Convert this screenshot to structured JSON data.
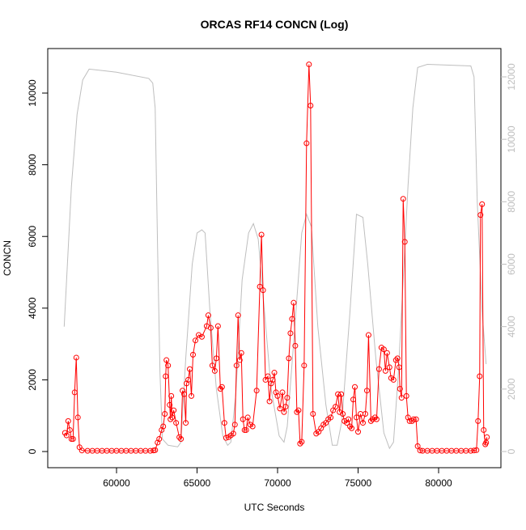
{
  "chart_data": {
    "type": "line",
    "title": "ORCAS RF14 CONCN (Log)",
    "x_label": "UTC Seconds",
    "y_label": "CONCN",
    "xlim": [
      55729,
      83869
    ],
    "xticks": [
      60000,
      65000,
      70000,
      75000,
      80000
    ],
    "ylim": [
      -451,
      11242
    ],
    "yticks": [
      0,
      2000,
      4000,
      6000,
      8000,
      10000
    ],
    "y2lim": [
      -518,
      12907
    ],
    "y2ticks": [
      0,
      2000,
      4000,
      6000,
      8000,
      10000,
      12000
    ],
    "series": [
      {
        "color": "#ff0000",
        "markers": true,
        "x": [
          56800,
          56900,
          57000,
          57100,
          57200,
          57300,
          57400,
          57500,
          57600,
          57700,
          57850,
          58200,
          58500,
          58800,
          59100,
          59400,
          59700,
          60000,
          60300,
          60600,
          60900,
          61200,
          61500,
          61800,
          62100,
          62300,
          62400,
          62550,
          62650,
          62800,
          62900,
          63000,
          63050,
          63100,
          63200,
          63300,
          63350,
          63400,
          63450,
          63550,
          63700,
          63900,
          64000,
          64100,
          64200,
          64300,
          64350,
          64450,
          64550,
          64650,
          64750,
          64900,
          65100,
          65300,
          65600,
          65700,
          65850,
          65950,
          66100,
          66200,
          66300,
          66450,
          66550,
          66700,
          66800,
          66950,
          67100,
          67250,
          67350,
          67450,
          67550,
          67650,
          67750,
          67850,
          67950,
          68050,
          68150,
          68300,
          68450,
          68700,
          68900,
          69000,
          69100,
          69250,
          69400,
          69500,
          69600,
          69700,
          69800,
          69900,
          70000,
          70150,
          70300,
          70400,
          70500,
          70600,
          70700,
          70800,
          70900,
          71000,
          71100,
          71200,
          71300,
          71400,
          71500,
          71650,
          71800,
          71950,
          72050,
          72200,
          72400,
          72550,
          72700,
          72850,
          73000,
          73150,
          73300,
          73450,
          73600,
          73750,
          73850,
          73950,
          74050,
          74150,
          74300,
          74400,
          74500,
          74600,
          74700,
          74800,
          74900,
          75000,
          75150,
          75300,
          75450,
          75550,
          75650,
          75800,
          75900,
          76050,
          76150,
          76300,
          76450,
          76600,
          76700,
          76800,
          76950,
          77050,
          77200,
          77350,
          77450,
          77550,
          77600,
          77700,
          77800,
          77900,
          78000,
          78100,
          78200,
          78350,
          78450,
          78600,
          78700,
          78850,
          79000,
          79300,
          79600,
          79900,
          80200,
          80500,
          80800,
          81100,
          81400,
          81700,
          82000,
          82200,
          82350,
          82450,
          82550,
          82600,
          82700,
          82800,
          82900,
          82950,
          83000
        ],
        "values": [
          520,
          450,
          850,
          600,
          350,
          350,
          1650,
          2620,
          950,
          120,
          30,
          20,
          20,
          20,
          20,
          20,
          20,
          20,
          20,
          20,
          20,
          20,
          20,
          20,
          20,
          30,
          40,
          250,
          350,
          600,
          700,
          1050,
          2100,
          2550,
          2400,
          1300,
          900,
          1550,
          950,
          1150,
          800,
          400,
          350,
          1700,
          1600,
          800,
          1900,
          2000,
          2300,
          1550,
          2700,
          3100,
          3250,
          3200,
          3500,
          3800,
          3450,
          2400,
          2250,
          2600,
          3500,
          1750,
          1800,
          800,
          380,
          400,
          450,
          500,
          750,
          2400,
          3800,
          2550,
          2750,
          900,
          600,
          600,
          950,
          750,
          700,
          1700,
          4600,
          6050,
          4500,
          2000,
          2100,
          1400,
          1900,
          2000,
          2200,
          1650,
          1550,
          1200,
          1650,
          1100,
          1250,
          1500,
          2600,
          3300,
          3700,
          4150,
          2950,
          1100,
          1150,
          220,
          270,
          2400,
          8600,
          10800,
          9650,
          1050,
          500,
          550,
          650,
          750,
          800,
          900,
          950,
          1150,
          1250,
          1600,
          1100,
          1600,
          1050,
          850,
          800,
          900,
          700,
          650,
          1450,
          1800,
          950,
          550,
          1050,
          800,
          1050,
          1700,
          3250,
          850,
          900,
          950,
          900,
          2300,
          2900,
          2850,
          2250,
          2750,
          2350,
          2050,
          2000,
          2550,
          2600,
          2350,
          1750,
          1500,
          7050,
          5850,
          1550,
          950,
          850,
          850,
          900,
          900,
          150,
          30,
          20,
          20,
          20,
          20,
          20,
          20,
          20,
          20,
          20,
          20,
          20,
          30,
          40,
          850,
          2100,
          6600,
          6900,
          600,
          200,
          250,
          400
        ]
      },
      {
        "color": "#bebebe",
        "axis": "y2",
        "markers": false,
        "x": [
          56750,
          57200,
          57550,
          57900,
          58300,
          60000,
          62000,
          62250,
          62400,
          62550,
          62700,
          62850,
          63200,
          63800,
          64000,
          64300,
          64700,
          65000,
          65300,
          65500,
          65800,
          66200,
          66600,
          66900,
          67100,
          67400,
          67800,
          68200,
          68500,
          68800,
          69100,
          69600,
          70100,
          70400,
          70600,
          71000,
          71500,
          71800,
          72100,
          72500,
          73000,
          73400,
          73700,
          74000,
          74500,
          74900,
          75300,
          75600,
          76100,
          76600,
          76950,
          77200,
          77500,
          77800,
          78100,
          78400,
          78700,
          79300,
          82000,
          82200,
          82400,
          82700,
          82950
        ],
        "values": [
          4000,
          8500,
          10800,
          11900,
          12250,
          12150,
          11950,
          11800,
          11000,
          6500,
          2500,
          400,
          200,
          150,
          300,
          3000,
          6000,
          7000,
          7100,
          7000,
          4500,
          2000,
          500,
          200,
          300,
          1800,
          5500,
          7000,
          7300,
          6800,
          5000,
          2000,
          500,
          300,
          800,
          3500,
          7000,
          7600,
          7200,
          4000,
          1500,
          200,
          200,
          1000,
          4500,
          7600,
          7500,
          6000,
          3000,
          600,
          100,
          300,
          2500,
          5500,
          8500,
          11000,
          12300,
          12400,
          12350,
          12000,
          8000,
          4500,
          2800
        ]
      }
    ]
  }
}
